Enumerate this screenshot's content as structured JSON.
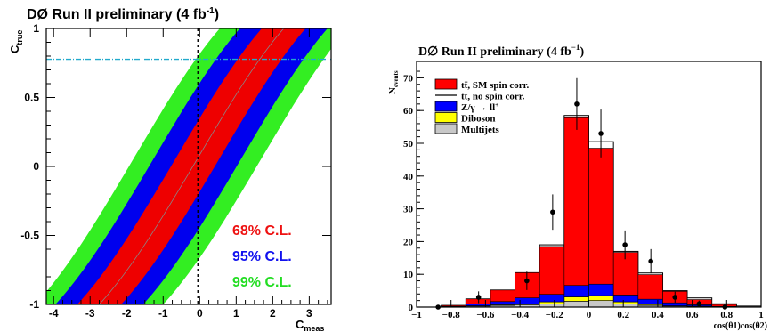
{
  "chart_data": [
    {
      "type": "area",
      "title": "DØ Run II preliminary (4 fb",
      "title_sup": "-1",
      "title_close": ")",
      "xlabel": "C",
      "xlabel_sub": "meas",
      "ylabel": "C",
      "ylabel_sub": "true",
      "xlim": [
        -4.2,
        3.6
      ],
      "ylim": [
        -1,
        1
      ],
      "xticks": [
        "-4",
        "-3",
        "-2",
        "-1",
        "0",
        "1",
        "2",
        "3"
      ],
      "yticks": [
        "1",
        "0.5",
        "0",
        "-0.5",
        "-1"
      ],
      "dashed_vertical_x": -0.05,
      "dotted_horizontal_y": 0.777,
      "grid": false,
      "bands": [
        {
          "name": "99% C.L.",
          "color": "#33ee22",
          "center_x": [
            -2.75,
            -1.0,
            0.65,
            2.3
          ],
          "halfwidth": 1.75
        },
        {
          "name": "95% C.L.",
          "color": "#0000ee",
          "center_x": [
            -2.75,
            -1.0,
            0.65,
            2.3
          ],
          "halfwidth": 1.2
        },
        {
          "name": "68% C.L.",
          "color": "#ee0000",
          "center_x": [
            -2.75,
            -1.0,
            0.65,
            2.3
          ],
          "halfwidth": 0.6
        }
      ],
      "bands_y": [
        -1.0,
        -0.5,
        0.5,
        1.0
      ],
      "legend": [
        {
          "label": "68% C.L.",
          "color": "#ee1111"
        },
        {
          "label": "95% C.L.",
          "color": "#1111ee"
        },
        {
          "label": "99% C.L.",
          "color": "#22dd22"
        }
      ],
      "legend_placement": "bottom-right"
    },
    {
      "type": "bar",
      "title": "D∅ Run II preliminary (4 fb",
      "title_sup": "−1",
      "title_close": ")",
      "xlabel": "cos(θ1)cos(θ2)",
      "ylabel": "N",
      "ylabel_sub": "events",
      "xlim": [
        -1,
        1
      ],
      "ylim": [
        0,
        75
      ],
      "xticks": [
        "−1",
        "−0.8",
        "−0.6",
        "−0.4",
        "−0.2",
        "0",
        "0.2",
        "0.4",
        "0.6",
        "0.8",
        "1"
      ],
      "yticks": [
        "70",
        "60",
        "50",
        "40",
        "30",
        "20",
        "10",
        "0"
      ],
      "bin_edges": [
        -1.0,
        -0.857,
        -0.714,
        -0.571,
        -0.429,
        -0.286,
        -0.143,
        0.0,
        0.143,
        0.286,
        0.429,
        0.571,
        0.714,
        0.857,
        1.0
      ],
      "series": [
        {
          "name": "Multijets",
          "color": "#c8c8c8",
          "values": [
            0,
            0,
            0.3,
            0.5,
            0.7,
            1.0,
            1.8,
            2.0,
            1.0,
            0.5,
            0.3,
            0.2,
            0,
            0
          ]
        },
        {
          "name": "Diboson",
          "color": "#ffff00",
          "values": [
            0,
            0,
            0.1,
            0.2,
            0.3,
            0.6,
            1.3,
            1.5,
            0.6,
            0.3,
            0.1,
            0.1,
            0,
            0
          ]
        },
        {
          "name": "Z/γ → l l",
          "color": "#0000ff",
          "values": [
            0,
            0.2,
            0.6,
            1.0,
            1.8,
            2.3,
            3.5,
            3.5,
            2.1,
            1.6,
            0.9,
            0.4,
            0.2,
            0
          ]
        },
        {
          "name": "tt̄, SM spin corr.",
          "color": "#ff0000",
          "values": [
            0,
            0.3,
            1.5,
            3.5,
            7.7,
            14.6,
            51.2,
            41.5,
            13.0,
            7.5,
            3.5,
            1.6,
            0.6,
            0
          ]
        }
      ],
      "no_spin_total": [
        0,
        0.5,
        2.5,
        5.2,
        10.5,
        19.0,
        58.5,
        50.5,
        17.0,
        10.4,
        5.0,
        2.8,
        1.0,
        0.3
      ],
      "data_points": [
        {
          "x": -0.875,
          "y": 0,
          "err": 0.5
        },
        {
          "x": -0.64,
          "y": 3,
          "err": 1.8
        },
        {
          "x": -0.36,
          "y": 8,
          "err": 2.8
        },
        {
          "x": -0.21,
          "y": 29,
          "err": 5.4
        },
        {
          "x": -0.07,
          "y": 62,
          "err": 7.9
        },
        {
          "x": 0.07,
          "y": 53,
          "err": 7.3
        },
        {
          "x": 0.21,
          "y": 19,
          "err": 4.4
        },
        {
          "x": 0.36,
          "y": 14,
          "err": 3.7
        },
        {
          "x": 0.5,
          "y": 3,
          "err": 1.7
        },
        {
          "x": 0.64,
          "y": 1,
          "err": 1.0
        },
        {
          "x": 0.79,
          "y": 0,
          "err": 0.5
        }
      ],
      "legend": [
        {
          "label": "tt̄, SM spin corr.",
          "kind": "fill",
          "color": "#ff0000"
        },
        {
          "label": "tt̄, no spin corr.",
          "kind": "line",
          "color": "#000000"
        },
        {
          "label": "Z/γ → l",
          "sup": "+",
          "extra": "l",
          "kind": "fill",
          "color": "#0000ff"
        },
        {
          "label": "Diboson",
          "kind": "fill",
          "color": "#ffff00"
        },
        {
          "label": "Multijets",
          "kind": "fill",
          "color": "#c8c8c8"
        }
      ],
      "legend_placement": "top-left"
    }
  ]
}
